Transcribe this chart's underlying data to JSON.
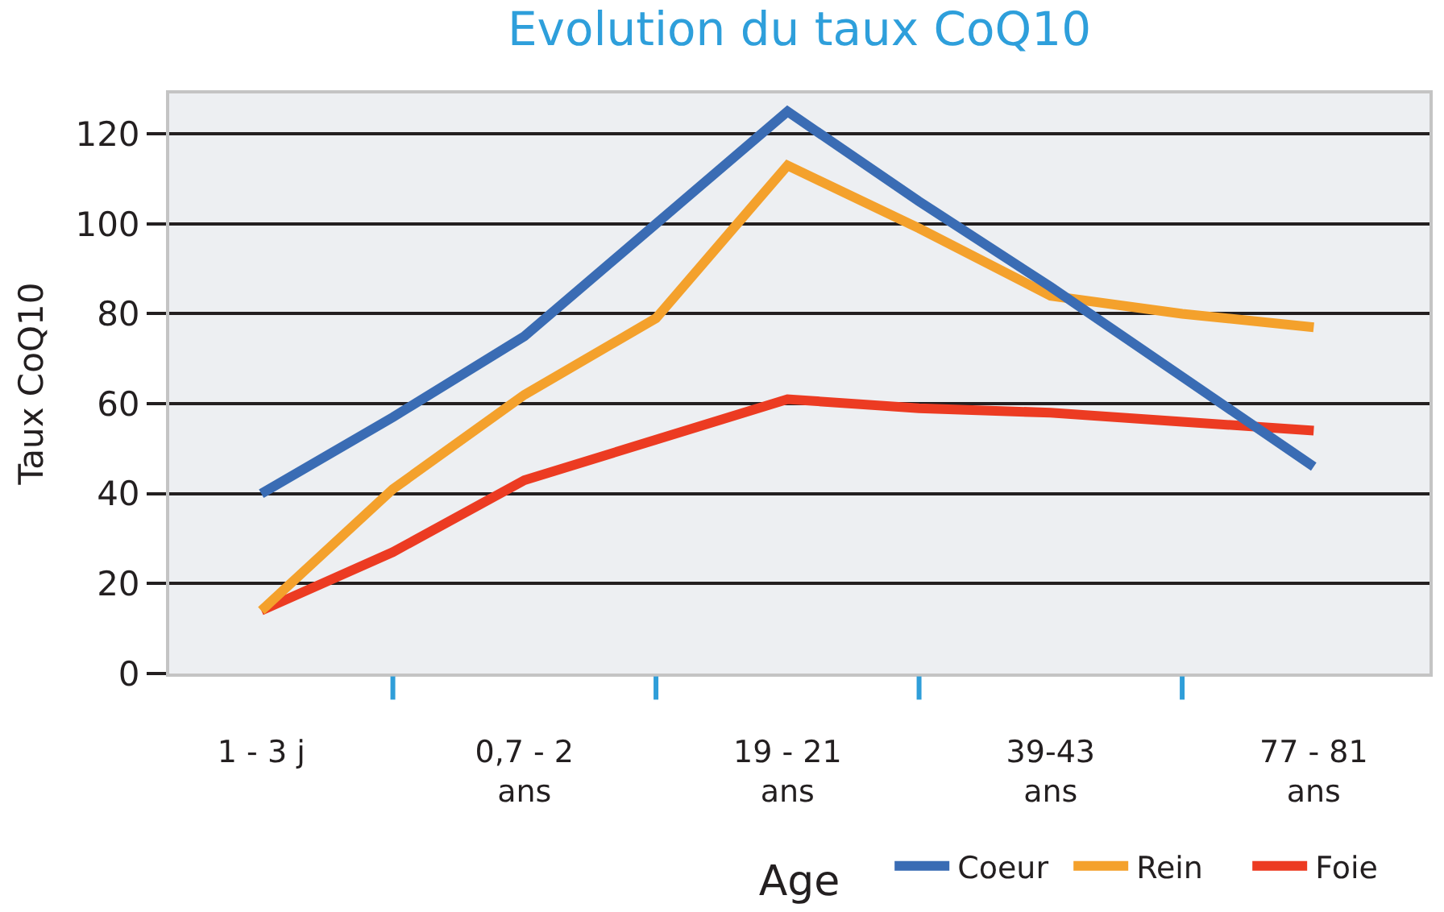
{
  "chart_data": {
    "type": "line",
    "title": "Evolution du taux CoQ10",
    "xlabel": "Age",
    "ylabel": "Taux CoQ10",
    "categories": [
      "1 - 3 j",
      null,
      "0,7 - 2\nans",
      null,
      "19 - 21\nans",
      null,
      "39-43\nans",
      null,
      "77 - 81\nans"
    ],
    "series": [
      {
        "name": "Coeur",
        "color": "#3a6cb4",
        "values": [
          40,
          57,
          75,
          100,
          125,
          105,
          86,
          66,
          46
        ]
      },
      {
        "name": "Rein",
        "color": "#f4a12c",
        "values": [
          14,
          41,
          62,
          79,
          113,
          99,
          84,
          80,
          77
        ]
      },
      {
        "name": "Foie",
        "color": "#ec3b22",
        "values": [
          14,
          27,
          43,
          52,
          61,
          59,
          58,
          56,
          54
        ]
      }
    ],
    "ylim": [
      0,
      129
    ],
    "yticks": [
      0,
      20,
      40,
      60,
      80,
      100,
      120
    ],
    "grid": "y",
    "legend": "bottom right"
  }
}
